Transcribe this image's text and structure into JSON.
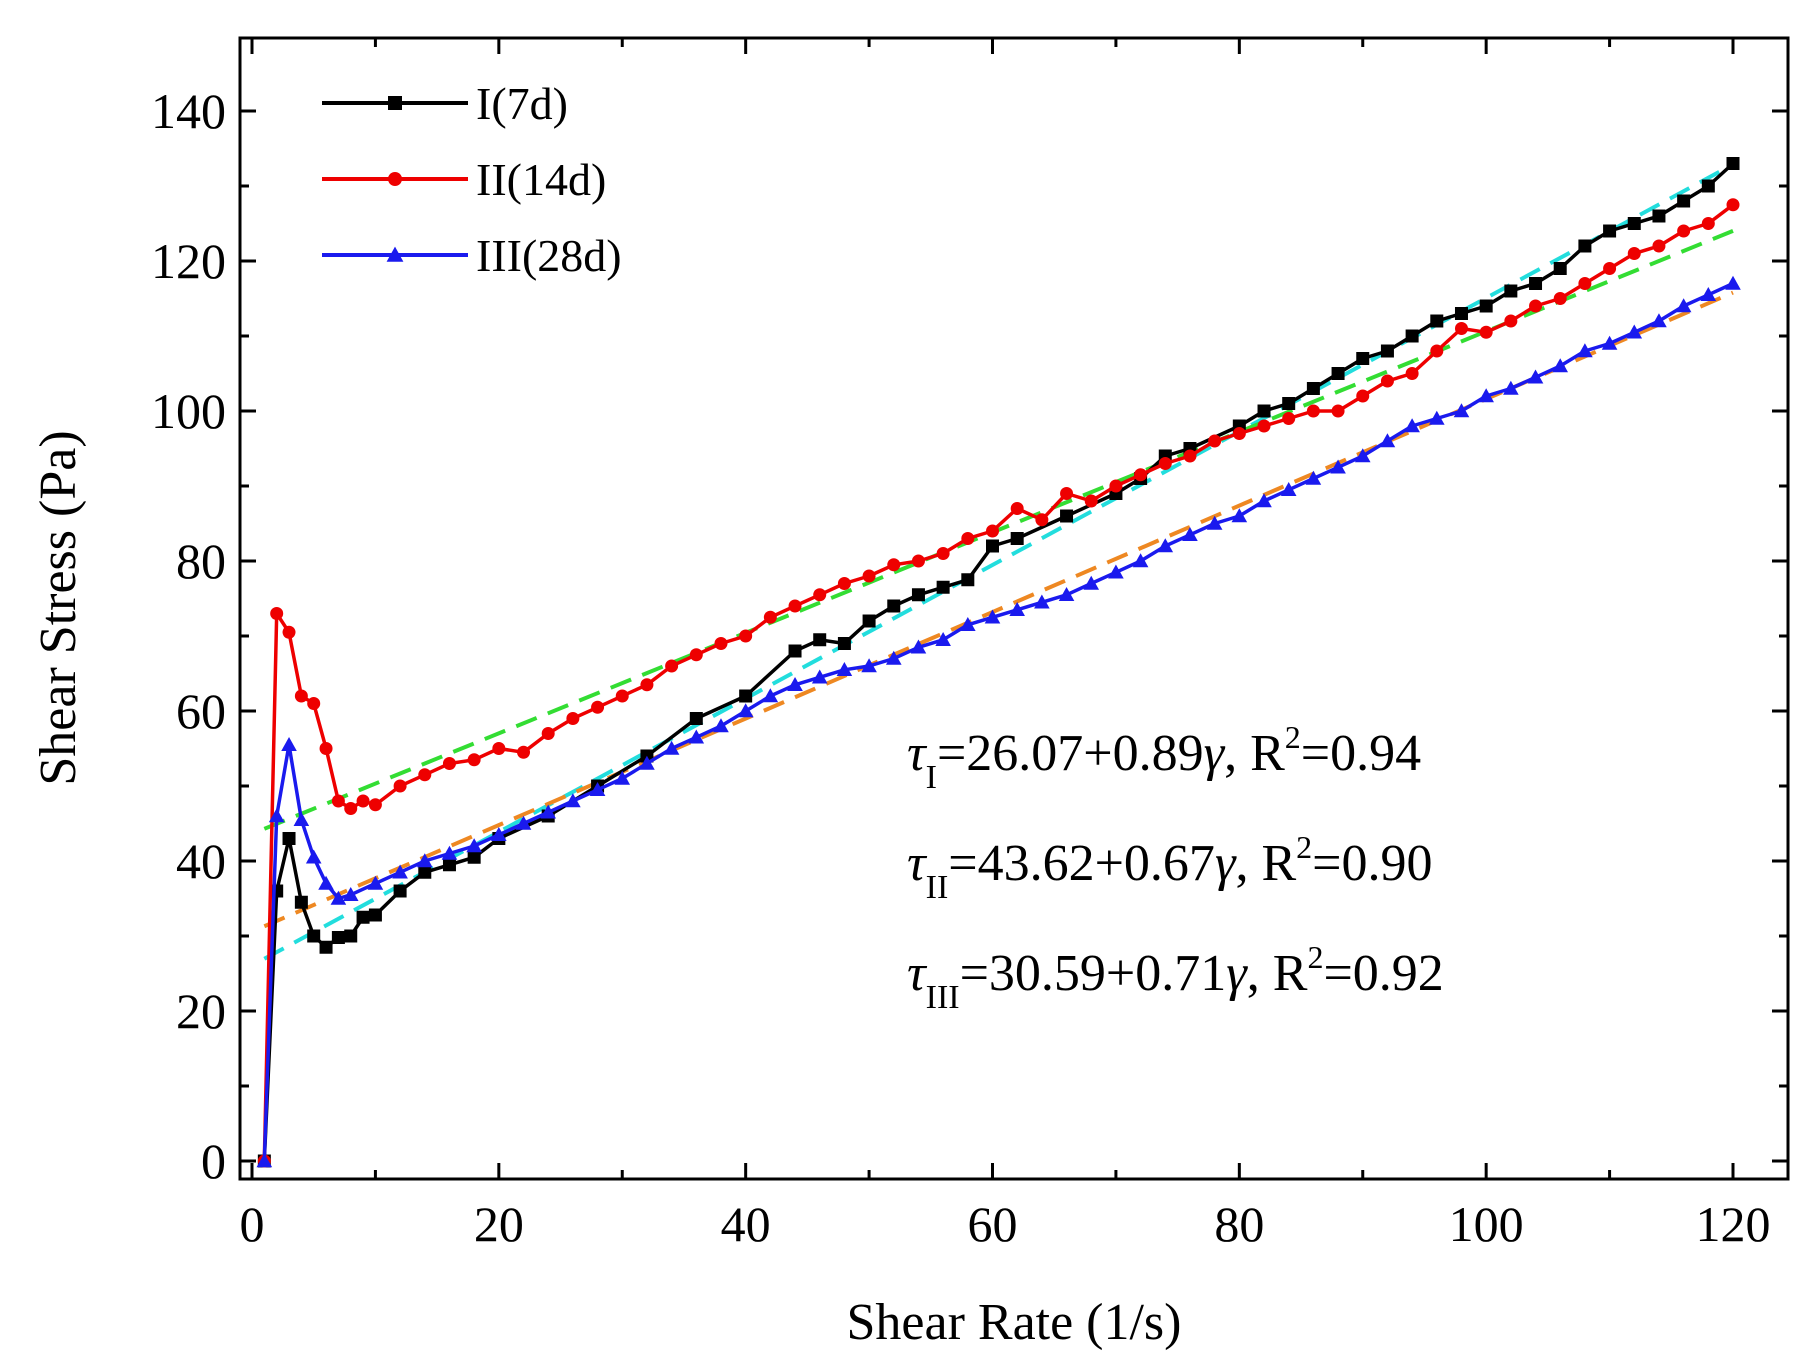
{
  "chart_data": {
    "type": "line",
    "title": "",
    "xlabel": "Shear Rate (1/s)",
    "ylabel": "Shear Stress (Pa)",
    "xlim": [
      0,
      125
    ],
    "ylim": [
      -2,
      150
    ],
    "xticks": [
      "0",
      "20",
      "40",
      "60",
      "80",
      "100",
      "120"
    ],
    "yticks": [
      "0",
      "20",
      "40",
      "60",
      "80",
      "100",
      "120",
      "140"
    ],
    "series": [
      {
        "name": "I(7d)",
        "color": "#000000",
        "marker": "square",
        "points": [
          [
            1,
            0
          ],
          [
            2,
            36
          ],
          [
            3,
            43
          ],
          [
            4,
            34.5
          ],
          [
            5,
            30
          ],
          [
            6,
            28.5
          ],
          [
            7,
            29.8
          ],
          [
            8,
            30
          ],
          [
            9,
            32.5
          ],
          [
            10,
            32.8
          ],
          [
            12,
            36
          ],
          [
            14,
            38.5
          ],
          [
            16,
            39.5
          ],
          [
            18,
            40.5
          ],
          [
            20,
            43
          ],
          [
            24,
            46
          ],
          [
            28,
            50
          ],
          [
            32,
            54
          ],
          [
            36,
            59
          ],
          [
            40,
            62
          ],
          [
            44,
            68
          ],
          [
            46,
            69.5
          ],
          [
            48,
            69
          ],
          [
            50,
            72
          ],
          [
            52,
            74
          ],
          [
            54,
            75.5
          ],
          [
            56,
            76.5
          ],
          [
            58,
            77.5
          ],
          [
            60,
            82
          ],
          [
            62,
            83
          ],
          [
            66,
            86
          ],
          [
            70,
            89
          ],
          [
            72,
            91
          ],
          [
            74,
            94
          ],
          [
            76,
            95
          ],
          [
            80,
            98
          ],
          [
            82,
            100
          ],
          [
            84,
            101
          ],
          [
            86,
            103
          ],
          [
            88,
            105
          ],
          [
            90,
            107
          ],
          [
            92,
            108
          ],
          [
            94,
            110
          ],
          [
            96,
            112
          ],
          [
            98,
            113
          ],
          [
            100,
            114
          ],
          [
            102,
            116
          ],
          [
            104,
            117
          ],
          [
            106,
            119
          ],
          [
            108,
            122
          ],
          [
            110,
            124
          ],
          [
            112,
            125
          ],
          [
            114,
            126
          ],
          [
            116,
            128
          ],
          [
            118,
            130
          ],
          [
            120,
            133
          ]
        ],
        "fit": {
          "intercept": 26.07,
          "slope": 0.89,
          "color": "#22dddd"
        }
      },
      {
        "name": "II(14d)",
        "color": "#ee0000",
        "marker": "circle",
        "points": [
          [
            1,
            0
          ],
          [
            2,
            73
          ],
          [
            3,
            70.5
          ],
          [
            4,
            62
          ],
          [
            5,
            61
          ],
          [
            6,
            55
          ],
          [
            7,
            48
          ],
          [
            8,
            47
          ],
          [
            9,
            48
          ],
          [
            10,
            47.5
          ],
          [
            12,
            50
          ],
          [
            14,
            51.5
          ],
          [
            16,
            53
          ],
          [
            18,
            53.5
          ],
          [
            20,
            55
          ],
          [
            22,
            54.5
          ],
          [
            24,
            57
          ],
          [
            26,
            59
          ],
          [
            28,
            60.5
          ],
          [
            30,
            62
          ],
          [
            32,
            63.5
          ],
          [
            34,
            66
          ],
          [
            36,
            67.5
          ],
          [
            38,
            69
          ],
          [
            40,
            70
          ],
          [
            42,
            72.5
          ],
          [
            44,
            74
          ],
          [
            46,
            75.5
          ],
          [
            48,
            77
          ],
          [
            50,
            78
          ],
          [
            52,
            79.5
          ],
          [
            54,
            80
          ],
          [
            56,
            81
          ],
          [
            58,
            83
          ],
          [
            60,
            84
          ],
          [
            62,
            87
          ],
          [
            64,
            85.5
          ],
          [
            66,
            89
          ],
          [
            68,
            88
          ],
          [
            70,
            90
          ],
          [
            72,
            91.5
          ],
          [
            74,
            93
          ],
          [
            76,
            94
          ],
          [
            78,
            96
          ],
          [
            80,
            97
          ],
          [
            82,
            98
          ],
          [
            84,
            99
          ],
          [
            86,
            100
          ],
          [
            88,
            100
          ],
          [
            90,
            102
          ],
          [
            92,
            104
          ],
          [
            94,
            105
          ],
          [
            96,
            108
          ],
          [
            98,
            111
          ],
          [
            100,
            110.5
          ],
          [
            102,
            112
          ],
          [
            104,
            114
          ],
          [
            106,
            115
          ],
          [
            108,
            117
          ],
          [
            110,
            119
          ],
          [
            112,
            121
          ],
          [
            114,
            122
          ],
          [
            116,
            124
          ],
          [
            118,
            125
          ],
          [
            120,
            127.5
          ]
        ],
        "fit": {
          "intercept": 43.62,
          "slope": 0.67,
          "color": "#33dd33"
        }
      },
      {
        "name": "III(28d)",
        "color": "#1a1aee",
        "marker": "triangle",
        "points": [
          [
            1,
            0
          ],
          [
            2,
            46
          ],
          [
            3,
            55.5
          ],
          [
            4,
            45.5
          ],
          [
            5,
            40.5
          ],
          [
            6,
            37
          ],
          [
            7,
            35
          ],
          [
            8,
            35.5
          ],
          [
            10,
            37
          ],
          [
            12,
            38.5
          ],
          [
            14,
            40
          ],
          [
            16,
            41
          ],
          [
            18,
            42
          ],
          [
            20,
            43.5
          ],
          [
            22,
            45
          ],
          [
            24,
            46.5
          ],
          [
            26,
            48
          ],
          [
            28,
            49.5
          ],
          [
            30,
            51
          ],
          [
            32,
            53
          ],
          [
            34,
            55
          ],
          [
            36,
            56.5
          ],
          [
            38,
            58
          ],
          [
            40,
            60
          ],
          [
            42,
            62
          ],
          [
            44,
            63.5
          ],
          [
            46,
            64.5
          ],
          [
            48,
            65.5
          ],
          [
            50,
            66
          ],
          [
            52,
            67
          ],
          [
            54,
            68.5
          ],
          [
            56,
            69.5
          ],
          [
            58,
            71.5
          ],
          [
            60,
            72.5
          ],
          [
            62,
            73.5
          ],
          [
            64,
            74.5
          ],
          [
            66,
            75.5
          ],
          [
            68,
            77
          ],
          [
            70,
            78.5
          ],
          [
            72,
            80
          ],
          [
            74,
            82
          ],
          [
            76,
            83.5
          ],
          [
            78,
            85
          ],
          [
            80,
            86
          ],
          [
            82,
            88
          ],
          [
            84,
            89.5
          ],
          [
            86,
            91
          ],
          [
            88,
            92.5
          ],
          [
            90,
            94
          ],
          [
            92,
            96
          ],
          [
            94,
            98
          ],
          [
            96,
            99
          ],
          [
            98,
            100
          ],
          [
            100,
            102
          ],
          [
            102,
            103
          ],
          [
            104,
            104.5
          ],
          [
            106,
            106
          ],
          [
            108,
            108
          ],
          [
            110,
            109
          ],
          [
            112,
            110.5
          ],
          [
            114,
            112
          ],
          [
            116,
            114
          ],
          [
            118,
            115.5
          ],
          [
            120,
            117
          ]
        ],
        "fit": {
          "intercept": 30.59,
          "slope": 0.71,
          "color": "#ee8822"
        }
      }
    ],
    "equations": [
      {
        "tau": "τ",
        "sub": "I",
        "rhs": "=26.07+0.89",
        "gamma": "γ",
        "r": ", R",
        "sup": "2",
        "rval": "=0.94"
      },
      {
        "tau": "τ",
        "sub": "II",
        "rhs": "=43.62+0.67",
        "gamma": "γ",
        "r": ", R",
        "sup": "2",
        "rval": "=0.90"
      },
      {
        "tau": "τ",
        "sub": "III",
        "rhs": "=30.59+0.71",
        "gamma": "γ",
        "r": ", R",
        "sup": "2",
        "rval": "=0.92"
      }
    ]
  }
}
